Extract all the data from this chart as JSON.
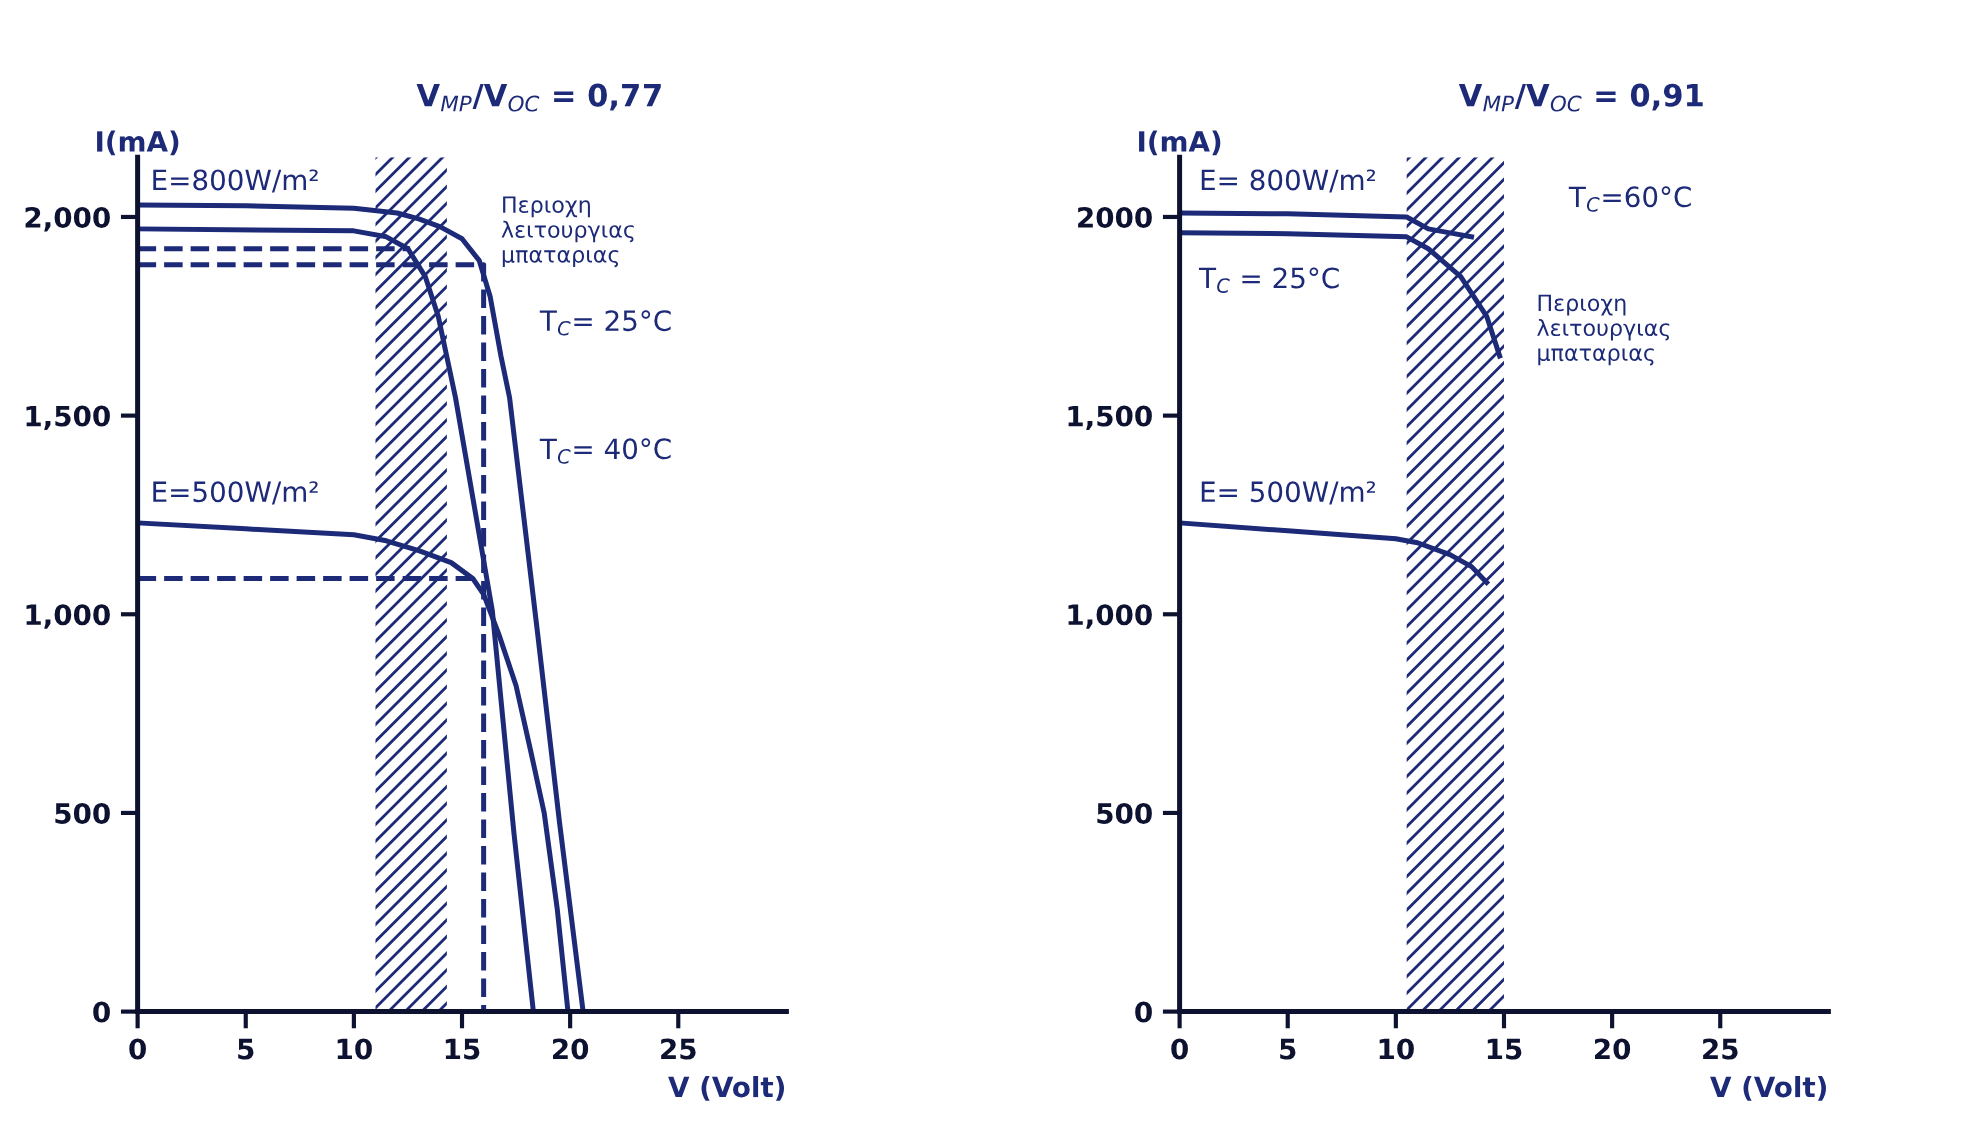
{
  "chart_data": [
    {
      "type": "line",
      "title": "V$_{MP}$/V$_{OC}$ = 0,77",
      "xlabel": "V (Volt)",
      "ylabel": "I(mA)",
      "xlim": [
        0,
        30
      ],
      "ylim": [
        0,
        2150
      ],
      "xticks": [
        0,
        5,
        10,
        15,
        20,
        25
      ],
      "yticks": [
        0,
        500,
        {
          "value": 1000,
          "label": "1,000"
        },
        {
          "value": 1500,
          "label": "1,500"
        },
        {
          "value": 2000,
          "label": "2,000"
        }
      ],
      "grid": false,
      "series": [
        {
          "color": "#1c2a78",
          "line_style": "solid",
          "x": [
            0,
            5,
            10,
            12,
            13,
            14,
            15,
            15.8,
            16.3,
            16.8,
            17.2,
            18.5,
            19.5,
            20.6
          ],
          "values": [
            2030,
            2028,
            2022,
            2010,
            1995,
            1975,
            1945,
            1890,
            1800,
            1650,
            1545,
            950,
            480,
            0
          ]
        },
        {
          "color": "#1c2a78",
          "line_style": "solid",
          "x": [
            0,
            10,
            11.5,
            12.5,
            13.3,
            13.9,
            14.7,
            16.4,
            17.4,
            18.3
          ],
          "values": [
            1970,
            1965,
            1950,
            1920,
            1850,
            1750,
            1545,
            1010,
            450,
            0
          ]
        },
        {
          "color": "#1c2a78",
          "line_style": "solid",
          "x": [
            0,
            5,
            10,
            11.5,
            13,
            14.5,
            15.5,
            16,
            16.7,
            17.5,
            18.2,
            18.8,
            19.4,
            19.9
          ],
          "values": [
            1230,
            1215,
            1200,
            1185,
            1160,
            1130,
            1090,
            1050,
            950,
            820,
            650,
            500,
            260,
            0
          ]
        },
        {
          "color": "#1c2a78",
          "line_style": "dashed",
          "x": [
            0,
            12.6
          ],
          "values": [
            1920,
            1920
          ]
        },
        {
          "color": "#1c2a78",
          "line_style": "dashed",
          "x": [
            0,
            16,
            16
          ],
          "values": [
            1880,
            1880,
            0
          ]
        },
        {
          "color": "#1c2a78",
          "line_style": "dashed",
          "x": [
            0,
            15.5
          ],
          "values": [
            1090,
            1090
          ]
        }
      ],
      "bands": [
        {
          "axis": "x",
          "from": 11,
          "to": 14.3,
          "label": "Περιοχη λειτουργιας μπαταριας",
          "color": "#1c2a78"
        }
      ],
      "annotations": [
        "E=800W/m²",
        "T$_{C}$= 25°C",
        "T$_{C}$= 40°C",
        "E=500W/m²"
      ]
    },
    {
      "type": "line",
      "title": "V$_{MP}$/V$_{OC}$ = 0,91",
      "xlabel": "V (Volt)",
      "ylabel": "I(mA)",
      "xlim": [
        0,
        30
      ],
      "ylim": [
        0,
        2150
      ],
      "xticks": [
        0,
        5,
        10,
        15,
        20,
        25
      ],
      "yticks": [
        0,
        500,
        {
          "value": 1000,
          "label": "1,000"
        },
        {
          "value": 1500,
          "label": "1,500"
        },
        2000
      ],
      "grid": false,
      "series": [
        {
          "color": "#1c2a78",
          "line_style": "solid",
          "x": [
            0,
            5,
            10.5,
            11.5,
            12.5,
            13.5
          ],
          "values": [
            2010,
            2008,
            2000,
            1970,
            1960,
            1950
          ]
        },
        {
          "color": "#1c2a78",
          "line_style": "solid",
          "x": [
            0,
            5,
            10.5,
            11.5,
            13,
            14.2,
            14.8
          ],
          "values": [
            1960,
            1958,
            1950,
            1920,
            1850,
            1750,
            1650
          ]
        },
        {
          "color": "#1c2a78",
          "line_style": "solid",
          "x": [
            0,
            5,
            10,
            11,
            12.5,
            13.5,
            14.2
          ],
          "values": [
            1230,
            1210,
            1190,
            1180,
            1150,
            1120,
            1080
          ]
        }
      ],
      "bands": [
        {
          "axis": "x",
          "from": 10.5,
          "to": 15,
          "label": "Περιοχη λειτουργιας μπαταριας",
          "color": "#1c2a78"
        }
      ],
      "annotations": [
        "E= 800W/m²",
        "T$_{C}$=60°C",
        "T$_{C}$ = 25°C",
        "E= 500W/m²"
      ]
    }
  ]
}
